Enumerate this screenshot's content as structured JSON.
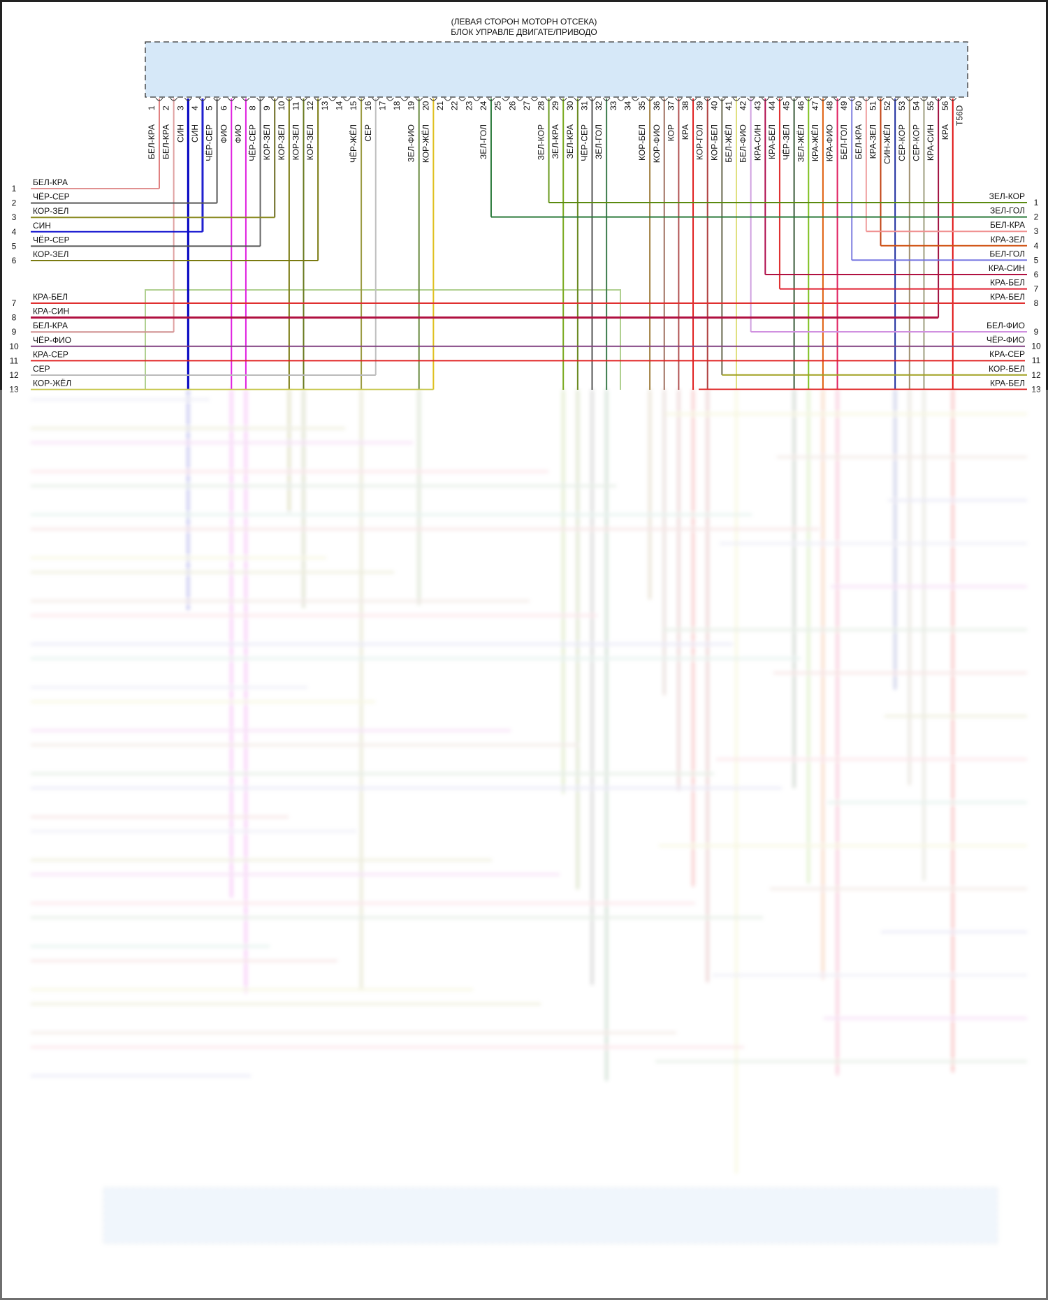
{
  "title": {
    "line1": "(ЛЕВАЯ СТОРОН МОТОРН ОТСЕКА)",
    "line2": "БЛОК УПРАВЛЕ ДВИГАТЕ/ПРИВОДО"
  },
  "connector": {
    "end_label": "T56D",
    "box_fill": "#d6e8f8",
    "pins": [
      {
        "num": "1",
        "label": "БЕЛ-КРА",
        "color": "#e08080"
      },
      {
        "num": "2",
        "label": "БЕЛ-КРА",
        "color": "#e0a0a0"
      },
      {
        "num": "3",
        "label": "СИН",
        "color": "#0000c0"
      },
      {
        "num": "4",
        "label": "СИН",
        "color": "#2020d0"
      },
      {
        "num": "5",
        "label": "ЧЁР-СЕР",
        "color": "#555555"
      },
      {
        "num": "6",
        "label": "ФИО",
        "color": "#e020e0"
      },
      {
        "num": "7",
        "label": "ФИО",
        "color": "#e020e0"
      },
      {
        "num": "8",
        "label": "ЧЁР-СЕР",
        "color": "#666666"
      },
      {
        "num": "9",
        "label": "КОР-ЗЕЛ",
        "color": "#6a6a20"
      },
      {
        "num": "10",
        "label": "КОР-ЗЕЛ",
        "color": "#7a7a10"
      },
      {
        "num": "11",
        "label": "КОР-ЗЕЛ",
        "color": "#6a7a20"
      },
      {
        "num": "12",
        "label": "КОР-ЗЕЛ",
        "color": "#7a7a10"
      },
      {
        "num": "13",
        "label": "",
        "color": ""
      },
      {
        "num": "14",
        "label": "",
        "color": ""
      },
      {
        "num": "15",
        "label": "ЧЁР-ЖЁЛ",
        "color": "#9a9a40"
      },
      {
        "num": "16",
        "label": "СЕР",
        "color": "#c0c0c0"
      },
      {
        "num": "17",
        "label": "",
        "color": ""
      },
      {
        "num": "18",
        "label": "",
        "color": ""
      },
      {
        "num": "19",
        "label": "ЗЕЛ-ФИО",
        "color": "#6a8a40"
      },
      {
        "num": "20",
        "label": "КОР-ЖЁЛ",
        "color": "#e0c020"
      },
      {
        "num": "21",
        "label": "",
        "color": ""
      },
      {
        "num": "22",
        "label": "",
        "color": ""
      },
      {
        "num": "23",
        "label": "",
        "color": ""
      },
      {
        "num": "24",
        "label": "ЗЕЛ-ГОЛ",
        "color": "#2a7a3a"
      },
      {
        "num": "25",
        "label": "",
        "color": ""
      },
      {
        "num": "26",
        "label": "",
        "color": ""
      },
      {
        "num": "27",
        "label": "",
        "color": ""
      },
      {
        "num": "28",
        "label": "ЗЕЛ-КОР",
        "color": "#6a9a20"
      },
      {
        "num": "29",
        "label": "ЗЕЛ-КРА",
        "color": "#7aaa20"
      },
      {
        "num": "30",
        "label": "ЗЕЛ-КРА",
        "color": "#6a8a20"
      },
      {
        "num": "31",
        "label": "ЧЁР-СЕР",
        "color": "#555555"
      },
      {
        "num": "32",
        "label": "ЗЕЛ-ГОЛ",
        "color": "#3a7a4a"
      },
      {
        "num": "33",
        "label": "",
        "color": ""
      },
      {
        "num": "34",
        "label": "",
        "color": ""
      },
      {
        "num": "35",
        "label": "КОР-БЕЛ",
        "color": "#a08040"
      },
      {
        "num": "36",
        "label": "КОР-ФИО",
        "color": "#a07060"
      },
      {
        "num": "37",
        "label": "КОР",
        "color": "#b05050"
      },
      {
        "num": "38",
        "label": "КРА",
        "color": "#e02020"
      },
      {
        "num": "39",
        "label": "КОР-ГОЛ",
        "color": "#b04040"
      },
      {
        "num": "40",
        "label": "КОР-БЕЛ",
        "color": "#6a6a50"
      },
      {
        "num": "41",
        "label": "БЕЛ-ЖЁЛ",
        "color": "#e0e080"
      },
      {
        "num": "42",
        "label": "БЕЛ-ФИО",
        "color": "#d0a0e0"
      },
      {
        "num": "43",
        "label": "КРА-СИН",
        "color": "#b01050"
      },
      {
        "num": "44",
        "label": "КРА-БЕЛ",
        "color": "#e03030"
      },
      {
        "num": "45",
        "label": "ЧЁР-ЗЕЛ",
        "color": "#3a5a3a"
      },
      {
        "num": "46",
        "label": "ЗЕЛ-ЖЁЛ",
        "color": "#80c020"
      },
      {
        "num": "47",
        "label": "КРА-ЖЁЛ",
        "color": "#e06010"
      },
      {
        "num": "48",
        "label": "КРА-ФИО",
        "color": "#e02060"
      },
      {
        "num": "49",
        "label": "БЕЛ-ГОЛ",
        "color": "#8080e0"
      },
      {
        "num": "50",
        "label": "БЕЛ-КРА",
        "color": "#f0a0a0"
      },
      {
        "num": "51",
        "label": "КРА-ЗЕЛ",
        "color": "#c04010"
      },
      {
        "num": "52",
        "label": "СИН-ЖЁЛ",
        "color": "#2030a0"
      },
      {
        "num": "53",
        "label": "СЕР-КОР",
        "color": "#a09070"
      },
      {
        "num": "54",
        "label": "СЕР-КОР",
        "color": "#a0a080"
      },
      {
        "num": "55",
        "label": "КРА-СИН",
        "color": "#a01040"
      },
      {
        "num": "56",
        "label": "КРА",
        "color": "#e01010"
      }
    ]
  },
  "left_rows": [
    {
      "num": "1",
      "label": "БЕЛ-КРА",
      "color": "#e09090",
      "pin": "1"
    },
    {
      "num": "2",
      "label": "ЧЁР-СЕР",
      "color": "#555555",
      "pin": "5"
    },
    {
      "num": "3",
      "label": "КОР-ЗЕЛ",
      "color": "#8a8a20",
      "pin": "9"
    },
    {
      "num": "4",
      "label": "СИН",
      "color": "#1010d0",
      "pin": "4"
    },
    {
      "num": "5",
      "label": "ЧЁР-СЕР",
      "color": "#555555",
      "pin": "8"
    },
    {
      "num": "6",
      "label": "КОР-ЗЕЛ",
      "color": "#7a7a10",
      "pin": "12"
    },
    {
      "num": "7",
      "label": "КРА-БЕЛ",
      "color": "#e03030",
      "pin": ""
    },
    {
      "num": "8",
      "label": "КРА-СИН",
      "color": "#b01040",
      "pin": "55"
    },
    {
      "num": "9",
      "label": "БЕЛ-КРА",
      "color": "#d09090",
      "pin": "2"
    },
    {
      "num": "10",
      "label": "ЧЁР-ФИО",
      "color": "#804080",
      "pin": ""
    },
    {
      "num": "11",
      "label": "КРА-СЕР",
      "color": "#e02020",
      "pin": ""
    },
    {
      "num": "12",
      "label": "СЕР",
      "color": "#bbbbbb",
      "pin": "16"
    },
    {
      "num": "13",
      "label": "КОР-ЖЁЛ",
      "color": "#c8c850",
      "pin": "20"
    }
  ],
  "right_rows": [
    {
      "num": "1",
      "label": "ЗЕЛ-КОР",
      "color": "#5a8a10",
      "pin": "28"
    },
    {
      "num": "2",
      "label": "ЗЕЛ-ГОЛ",
      "color": "#2a7a3a",
      "pin": "24"
    },
    {
      "num": "3",
      "label": "БЕЛ-КРА",
      "color": "#f09090",
      "pin": "50"
    },
    {
      "num": "4",
      "label": "КРА-ЗЕЛ",
      "color": "#d05010",
      "pin": "51"
    },
    {
      "num": "5",
      "label": "БЕЛ-ГОЛ",
      "color": "#7070e0",
      "pin": "49"
    },
    {
      "num": "6",
      "label": "КРА-СИН",
      "color": "#b01040",
      "pin": "43"
    },
    {
      "num": "7",
      "label": "КРА-БЕЛ",
      "color": "#e02030",
      "pin": "44"
    },
    {
      "num": "8",
      "label": "КРА-БЕЛ",
      "color": "#e03030",
      "pin": ""
    },
    {
      "num": "9",
      "label": "БЕЛ-ФИО",
      "color": "#d090e0",
      "pin": "42"
    },
    {
      "num": "10",
      "label": "ЧЁР-ФИО",
      "color": "#804080",
      "pin": ""
    },
    {
      "num": "11",
      "label": "КРА-СЕР",
      "color": "#e02020",
      "pin": ""
    },
    {
      "num": "12",
      "label": "КОР-БЕЛ",
      "color": "#a0a020",
      "pin": "40"
    },
    {
      "num": "13",
      "label": "КРА-БЕЛ",
      "color": "#e03030",
      "pin": ""
    }
  ]
}
